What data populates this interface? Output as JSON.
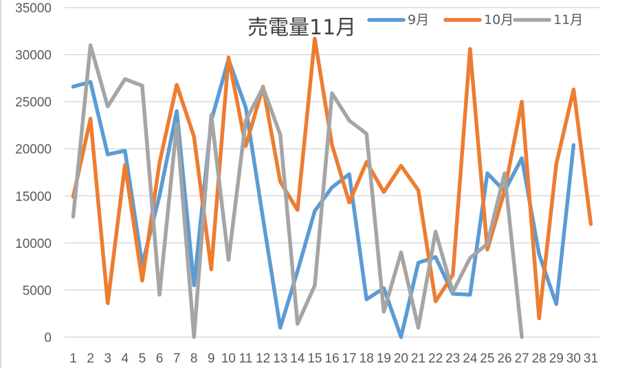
{
  "chart_data": {
    "type": "line",
    "title": "売電量11月",
    "xlabel": "",
    "ylabel": "",
    "ylim": [
      0,
      35000
    ],
    "yticks": [
      0,
      5000,
      10000,
      15000,
      20000,
      25000,
      30000,
      35000
    ],
    "grid": true,
    "legend_position": "top-right",
    "categories": [
      "1",
      "2",
      "3",
      "4",
      "5",
      "6",
      "7",
      "8",
      "9",
      "10",
      "11",
      "12",
      "13",
      "14",
      "15",
      "16",
      "17",
      "18",
      "19",
      "20",
      "21",
      "22",
      "23",
      "24",
      "25",
      "26",
      "27",
      "28",
      "29",
      "30",
      "31"
    ],
    "series": [
      {
        "name": "9月",
        "color": "#5b9bd5",
        "values": [
          26600,
          27100,
          19400,
          19800,
          7700,
          15000,
          24000,
          5500,
          23000,
          29500,
          24400,
          12600,
          1000,
          7000,
          13400,
          15900,
          17300,
          4000,
          5200,
          0,
          7900,
          8500,
          4600,
          4500,
          17400,
          15500,
          19000,
          8800,
          3500,
          20400,
          null
        ]
      },
      {
        "name": "10月",
        "color": "#ed7d31",
        "values": [
          14900,
          23200,
          3600,
          18300,
          6000,
          18500,
          26800,
          21300,
          7200,
          29700,
          20300,
          26600,
          16500,
          13500,
          31700,
          20400,
          14300,
          18600,
          15400,
          18200,
          15600,
          3800,
          6600,
          30600,
          9300,
          15500,
          25000,
          2000,
          18400,
          26300,
          12000
        ]
      },
      {
        "name": "11月",
        "color": "#a5a5a5",
        "values": [
          12800,
          31000,
          24500,
          27400,
          26700,
          4500,
          22600,
          0,
          23600,
          8200,
          23000,
          26500,
          21500,
          1400,
          5500,
          25900,
          23000,
          21600,
          2700,
          9000,
          1000,
          11200,
          4800,
          8400,
          9900,
          17400,
          0,
          null,
          null,
          null,
          null
        ]
      }
    ]
  }
}
